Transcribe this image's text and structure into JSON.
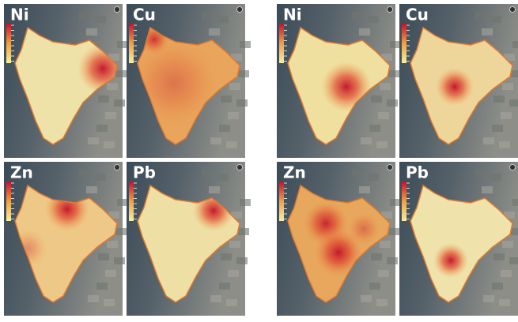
{
  "panels": [
    {
      "label": "Ni"
    },
    {
      "label": "Cu"
    },
    {
      "label": "Zn"
    },
    {
      "label": "Pb"
    },
    {
      "label": "Ni"
    },
    {
      "label": "Cu"
    },
    {
      "label": "Zn"
    },
    {
      "label": "Pb"
    }
  ]
}
